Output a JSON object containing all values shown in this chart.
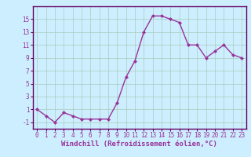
{
  "x": [
    0,
    1,
    2,
    3,
    4,
    5,
    6,
    7,
    8,
    9,
    10,
    11,
    12,
    13,
    14,
    15,
    16,
    17,
    18,
    19,
    20,
    21,
    22,
    23
  ],
  "y": [
    1,
    0,
    -1,
    0.5,
    0,
    -0.5,
    -0.5,
    -0.5,
    -0.5,
    2,
    6,
    8.5,
    13,
    15.5,
    15.5,
    15,
    14.5,
    11,
    11,
    9,
    10,
    11,
    9.5,
    9
  ],
  "line_color": "#993399",
  "marker": "D",
  "marker_size": 2,
  "background_color": "#cceeff",
  "grid_color": "#aaccbb",
  "xlabel": "Windchill (Refroidissement éolien,°C)",
  "xlabel_fontsize": 6.5,
  "ylabel_ticks": [
    -1,
    1,
    3,
    5,
    7,
    9,
    11,
    13,
    15
  ],
  "xtick_labels": [
    "0",
    "1",
    "2",
    "3",
    "4",
    "5",
    "6",
    "7",
    "8",
    "9",
    "10",
    "11",
    "12",
    "13",
    "14",
    "15",
    "16",
    "17",
    "18",
    "19",
    "20",
    "21",
    "22",
    "23"
  ],
  "ylim": [
    -2,
    17
  ],
  "xlim": [
    -0.5,
    23.5
  ],
  "tick_fontsize": 5.5,
  "line_width": 1.0,
  "spine_color": "#660066",
  "axis_bg": "#cceeff"
}
